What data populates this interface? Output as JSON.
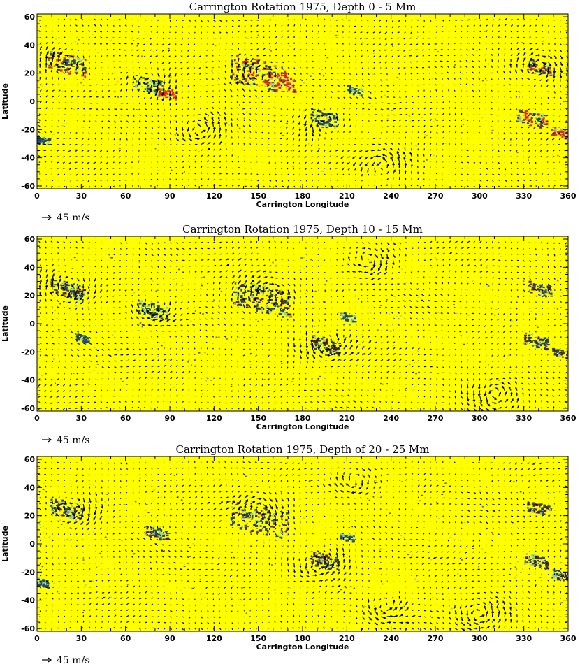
{
  "colors": {
    "background": "#ffff00",
    "vector": "#000000",
    "mag_negative": "#1f4a6e",
    "mag_negative_weak": "#8fd0b0",
    "mag_positive": "#e0281e",
    "mag_positive_dark": "#5a1a10"
  },
  "chart_data": [
    {
      "type": "vector_field",
      "title": "Carrington Rotation 1975, Depth 0 - 5 Mm",
      "xlabel": "Carrington Longitude",
      "ylabel": "Latitude",
      "xlim": [
        0,
        360
      ],
      "ylim": [
        -62,
        62
      ],
      "xticks": [
        0,
        30,
        60,
        90,
        120,
        150,
        180,
        210,
        240,
        270,
        300,
        330,
        360
      ],
      "yticks": [
        -60,
        -40,
        -20,
        0,
        20,
        40,
        60
      ],
      "grid": false,
      "reference_vector": {
        "value": 45,
        "unit": "m/s",
        "label": "45 m/s"
      },
      "active_regions": [
        {
          "lon": 20,
          "lat": 27,
          "polarity": "mixed",
          "size": 8
        },
        {
          "lon": 75,
          "lat": 12,
          "polarity": "negative",
          "size": 6
        },
        {
          "lon": 88,
          "lat": 6,
          "polarity": "positive",
          "size": 4
        },
        {
          "lon": 150,
          "lat": 20,
          "polarity": "mixed",
          "size": 12
        },
        {
          "lon": 165,
          "lat": 14,
          "polarity": "positive",
          "size": 6
        },
        {
          "lon": 195,
          "lat": -12,
          "polarity": "negative",
          "size": 6
        },
        {
          "lon": 215,
          "lat": 8,
          "polarity": "negative",
          "size": 3
        },
        {
          "lon": 340,
          "lat": 25,
          "polarity": "mixed",
          "size": 5
        },
        {
          "lon": 335,
          "lat": -12,
          "polarity": "mixed",
          "size": 6
        },
        {
          "lon": 355,
          "lat": -22,
          "polarity": "positive",
          "size": 4
        },
        {
          "lon": 3,
          "lat": -27,
          "polarity": "negative",
          "size": 3
        }
      ],
      "vortices": [
        {
          "lon": 18,
          "lat": 28,
          "s": -1
        },
        {
          "lon": 150,
          "lat": 20,
          "s": -1
        },
        {
          "lon": 195,
          "lat": -15,
          "s": 1
        },
        {
          "lon": 75,
          "lat": 12,
          "s": -1
        },
        {
          "lon": 340,
          "lat": 25,
          "s": -1
        },
        {
          "lon": 235,
          "lat": -45,
          "s": 1
        },
        {
          "lon": 110,
          "lat": -20,
          "s": 1
        }
      ]
    },
    {
      "type": "vector_field",
      "title": "Carrington Rotation 1975, Depth 10 - 15 Mm",
      "xlabel": "Carrington Longitude",
      "ylabel": "Latitude",
      "xlim": [
        0,
        360
      ],
      "ylim": [
        -62,
        62
      ],
      "xticks": [
        0,
        30,
        60,
        90,
        120,
        150,
        180,
        210,
        240,
        270,
        300,
        330,
        360
      ],
      "yticks": [
        -60,
        -40,
        -20,
        0,
        20,
        40,
        60
      ],
      "grid": false,
      "reference_vector": {
        "value": 45,
        "unit": "m/s",
        "label": "45 m/s"
      },
      "active_regions": [
        {
          "lon": 20,
          "lat": 25,
          "polarity": "mixed",
          "size": 7
        },
        {
          "lon": 78,
          "lat": 10,
          "polarity": "negative",
          "size": 6
        },
        {
          "lon": 152,
          "lat": 18,
          "polarity": "mixed",
          "size": 12
        },
        {
          "lon": 195,
          "lat": -15,
          "polarity": "mixed",
          "size": 6
        },
        {
          "lon": 210,
          "lat": 5,
          "polarity": "negative",
          "size": 3
        },
        {
          "lon": 340,
          "lat": 25,
          "polarity": "mixed",
          "size": 5
        },
        {
          "lon": 338,
          "lat": -12,
          "polarity": "mixed",
          "size": 5
        },
        {
          "lon": 355,
          "lat": -20,
          "polarity": "mixed",
          "size": 4
        },
        {
          "lon": 30,
          "lat": -10,
          "polarity": "negative",
          "size": 3
        }
      ],
      "vortices": [
        {
          "lon": 155,
          "lat": 20,
          "s": -1
        },
        {
          "lon": 20,
          "lat": 25,
          "s": -1
        },
        {
          "lon": 195,
          "lat": -15,
          "s": 1
        },
        {
          "lon": 310,
          "lat": -50,
          "s": 1
        },
        {
          "lon": 225,
          "lat": 45,
          "s": -1
        },
        {
          "lon": 80,
          "lat": 10,
          "s": -1
        }
      ]
    },
    {
      "type": "vector_field",
      "title": "Carrington Rotation 1975, Depth of 20 - 25 Mm",
      "xlabel": "Carrington Longitude",
      "ylabel": "Latitude",
      "xlim": [
        0,
        360
      ],
      "ylim": [
        -62,
        62
      ],
      "xticks": [
        0,
        30,
        60,
        90,
        120,
        150,
        180,
        210,
        240,
        270,
        300,
        330,
        360
      ],
      "yticks": [
        -60,
        -40,
        -20,
        0,
        20,
        40,
        60
      ],
      "grid": false,
      "reference_vector": {
        "value": 45,
        "unit": "m/s",
        "label": "45 m/s"
      },
      "active_regions": [
        {
          "lon": 20,
          "lat": 25,
          "polarity": "mixed",
          "size": 7
        },
        {
          "lon": 80,
          "lat": 8,
          "polarity": "mixed",
          "size": 5
        },
        {
          "lon": 150,
          "lat": 18,
          "polarity": "mixed",
          "size": 12
        },
        {
          "lon": 195,
          "lat": -12,
          "polarity": "mixed",
          "size": 6
        },
        {
          "lon": 210,
          "lat": 5,
          "polarity": "negative",
          "size": 3
        },
        {
          "lon": 340,
          "lat": 25,
          "polarity": "mixed",
          "size": 5
        },
        {
          "lon": 338,
          "lat": -12,
          "polarity": "mixed",
          "size": 5
        },
        {
          "lon": 355,
          "lat": -22,
          "polarity": "mixed",
          "size": 4
        },
        {
          "lon": 3,
          "lat": -27,
          "polarity": "negative",
          "size": 3
        }
      ],
      "vortices": [
        {
          "lon": 150,
          "lat": 25,
          "s": -1
        },
        {
          "lon": 25,
          "lat": 25,
          "s": -1
        },
        {
          "lon": 190,
          "lat": -15,
          "s": 1
        },
        {
          "lon": 235,
          "lat": -45,
          "s": 1
        },
        {
          "lon": 300,
          "lat": -50,
          "s": 1
        },
        {
          "lon": 215,
          "lat": 45,
          "s": -1
        }
      ]
    }
  ]
}
